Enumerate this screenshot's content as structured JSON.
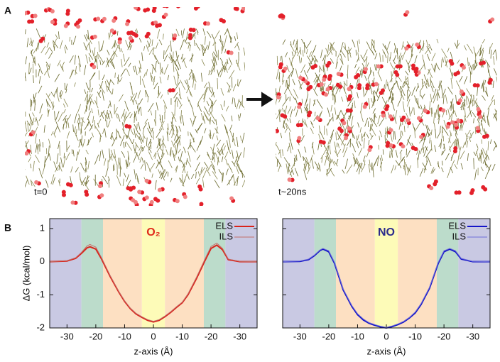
{
  "panel_a": {
    "label": "A",
    "snapshots": [
      "t=0",
      "t~20ns"
    ]
  },
  "panel_b": {
    "label": "B"
  },
  "chart_data": [
    {
      "type": "line",
      "title": "O₂",
      "title_color": "#e02a1a",
      "ylabel": "ΔG (kcal/mol)",
      "xlabel": "z-axis (Å)",
      "xlim": [
        -36,
        36
      ],
      "ylim": [
        -2,
        1.3
      ],
      "xticks": [
        -30,
        -20,
        -10,
        0,
        {
          "value": 10,
          "label": "-10"
        },
        {
          "value": 20,
          "label": "-20"
        },
        {
          "value": 30,
          "label": "-30"
        }
      ],
      "yticks": [
        -2,
        -1,
        0,
        1
      ],
      "ytick_labels": true,
      "legend": "upper right",
      "regions": [
        {
          "from": -36,
          "to": -25,
          "color": "#c9c9e3"
        },
        {
          "from": -25,
          "to": -17.5,
          "color": "#bcdccb"
        },
        {
          "from": -17.5,
          "to": -4,
          "color": "#fde0c2"
        },
        {
          "from": -4,
          "to": 4,
          "color": "#fdfbb8"
        },
        {
          "from": 4,
          "to": 17.5,
          "color": "#fde0c2"
        },
        {
          "from": 17.5,
          "to": 25,
          "color": "#bcdccb"
        },
        {
          "from": 25,
          "to": 36,
          "color": "#c9c9e3"
        }
      ],
      "x": [
        -36,
        -30,
        -27,
        -25,
        -23,
        -22,
        -20,
        -18,
        -15,
        -12,
        -10,
        -8,
        -6,
        -4,
        -2,
        0,
        2,
        4,
        6,
        8,
        10,
        12,
        15,
        18,
        20,
        22,
        24,
        26,
        30,
        36
      ],
      "series": [
        {
          "name": "ELS",
          "color": "#d9231a",
          "width": 2,
          "values": [
            0,
            0.02,
            0.1,
            0.25,
            0.42,
            0.45,
            0.38,
            0.08,
            -0.45,
            -0.92,
            -1.2,
            -1.42,
            -1.58,
            -1.68,
            -1.77,
            -1.82,
            -1.77,
            -1.66,
            -1.53,
            -1.38,
            -1.24,
            -1.0,
            -0.5,
            0.05,
            0.4,
            0.5,
            0.36,
            0.06,
            0,
            0
          ]
        },
        {
          "name": "ILS",
          "color": "#c2706a",
          "width": 1,
          "values": [
            0,
            0.03,
            0.12,
            0.28,
            0.48,
            0.52,
            0.44,
            0.12,
            -0.42,
            -0.9,
            -1.18,
            -1.4,
            -1.56,
            -1.66,
            -1.75,
            -1.8,
            -1.75,
            -1.64,
            -1.51,
            -1.36,
            -1.22,
            -0.97,
            -0.46,
            0.1,
            0.46,
            0.56,
            0.4,
            0.08,
            0.01,
            0
          ]
        }
      ]
    },
    {
      "type": "line",
      "title": "NO",
      "title_color": "#2a2a8c",
      "xlabel": "z-axis (Å)",
      "xlim": [
        -36,
        36
      ],
      "ylim": [
        -2,
        1.3
      ],
      "xticks": [
        -30,
        -20,
        -10,
        0,
        {
          "value": 10,
          "label": "-10"
        },
        {
          "value": 20,
          "label": "-20"
        },
        {
          "value": 30,
          "label": "-30"
        }
      ],
      "yticks": [
        -2,
        -1,
        0,
        1
      ],
      "ytick_labels": false,
      "legend": "upper right",
      "regions": [
        {
          "from": -36,
          "to": -25,
          "color": "#c9c9e3"
        },
        {
          "from": -25,
          "to": -17.5,
          "color": "#bcdccb"
        },
        {
          "from": -17.5,
          "to": -4,
          "color": "#fde0c2"
        },
        {
          "from": -4,
          "to": 4,
          "color": "#fdfbb8"
        },
        {
          "from": 4,
          "to": 17.5,
          "color": "#fde0c2"
        },
        {
          "from": 17.5,
          "to": 25,
          "color": "#bcdccb"
        },
        {
          "from": 25,
          "to": 36,
          "color": "#c9c9e3"
        }
      ],
      "x": [
        -36,
        -30,
        -27,
        -25,
        -23,
        -22,
        -20,
        -18,
        -15,
        -12,
        -10,
        -8,
        -6,
        -4,
        -2,
        0,
        2,
        4,
        6,
        8,
        10,
        12,
        15,
        18,
        20,
        22,
        24,
        26,
        30,
        36
      ],
      "series": [
        {
          "name": "ELS",
          "color": "#1414c8",
          "width": 2,
          "values": [
            0,
            0.01,
            0.06,
            0.18,
            0.34,
            0.38,
            0.3,
            -0.05,
            -0.85,
            -1.35,
            -1.6,
            -1.76,
            -1.86,
            -1.92,
            -1.97,
            -2.0,
            -1.96,
            -1.9,
            -1.82,
            -1.7,
            -1.55,
            -1.3,
            -0.8,
            -0.05,
            0.3,
            0.38,
            0.3,
            0.08,
            0,
            0
          ]
        },
        {
          "name": "ILS",
          "color": "#6e6ed8",
          "width": 1,
          "values": [
            0,
            0.02,
            0.08,
            0.2,
            0.36,
            0.4,
            0.33,
            -0.02,
            -0.82,
            -1.32,
            -1.57,
            -1.73,
            -1.84,
            -1.9,
            -1.95,
            -1.98,
            -1.94,
            -1.88,
            -1.8,
            -1.68,
            -1.52,
            -1.27,
            -0.77,
            -0.02,
            0.33,
            0.4,
            0.33,
            0.1,
            0.01,
            0
          ]
        }
      ]
    }
  ]
}
